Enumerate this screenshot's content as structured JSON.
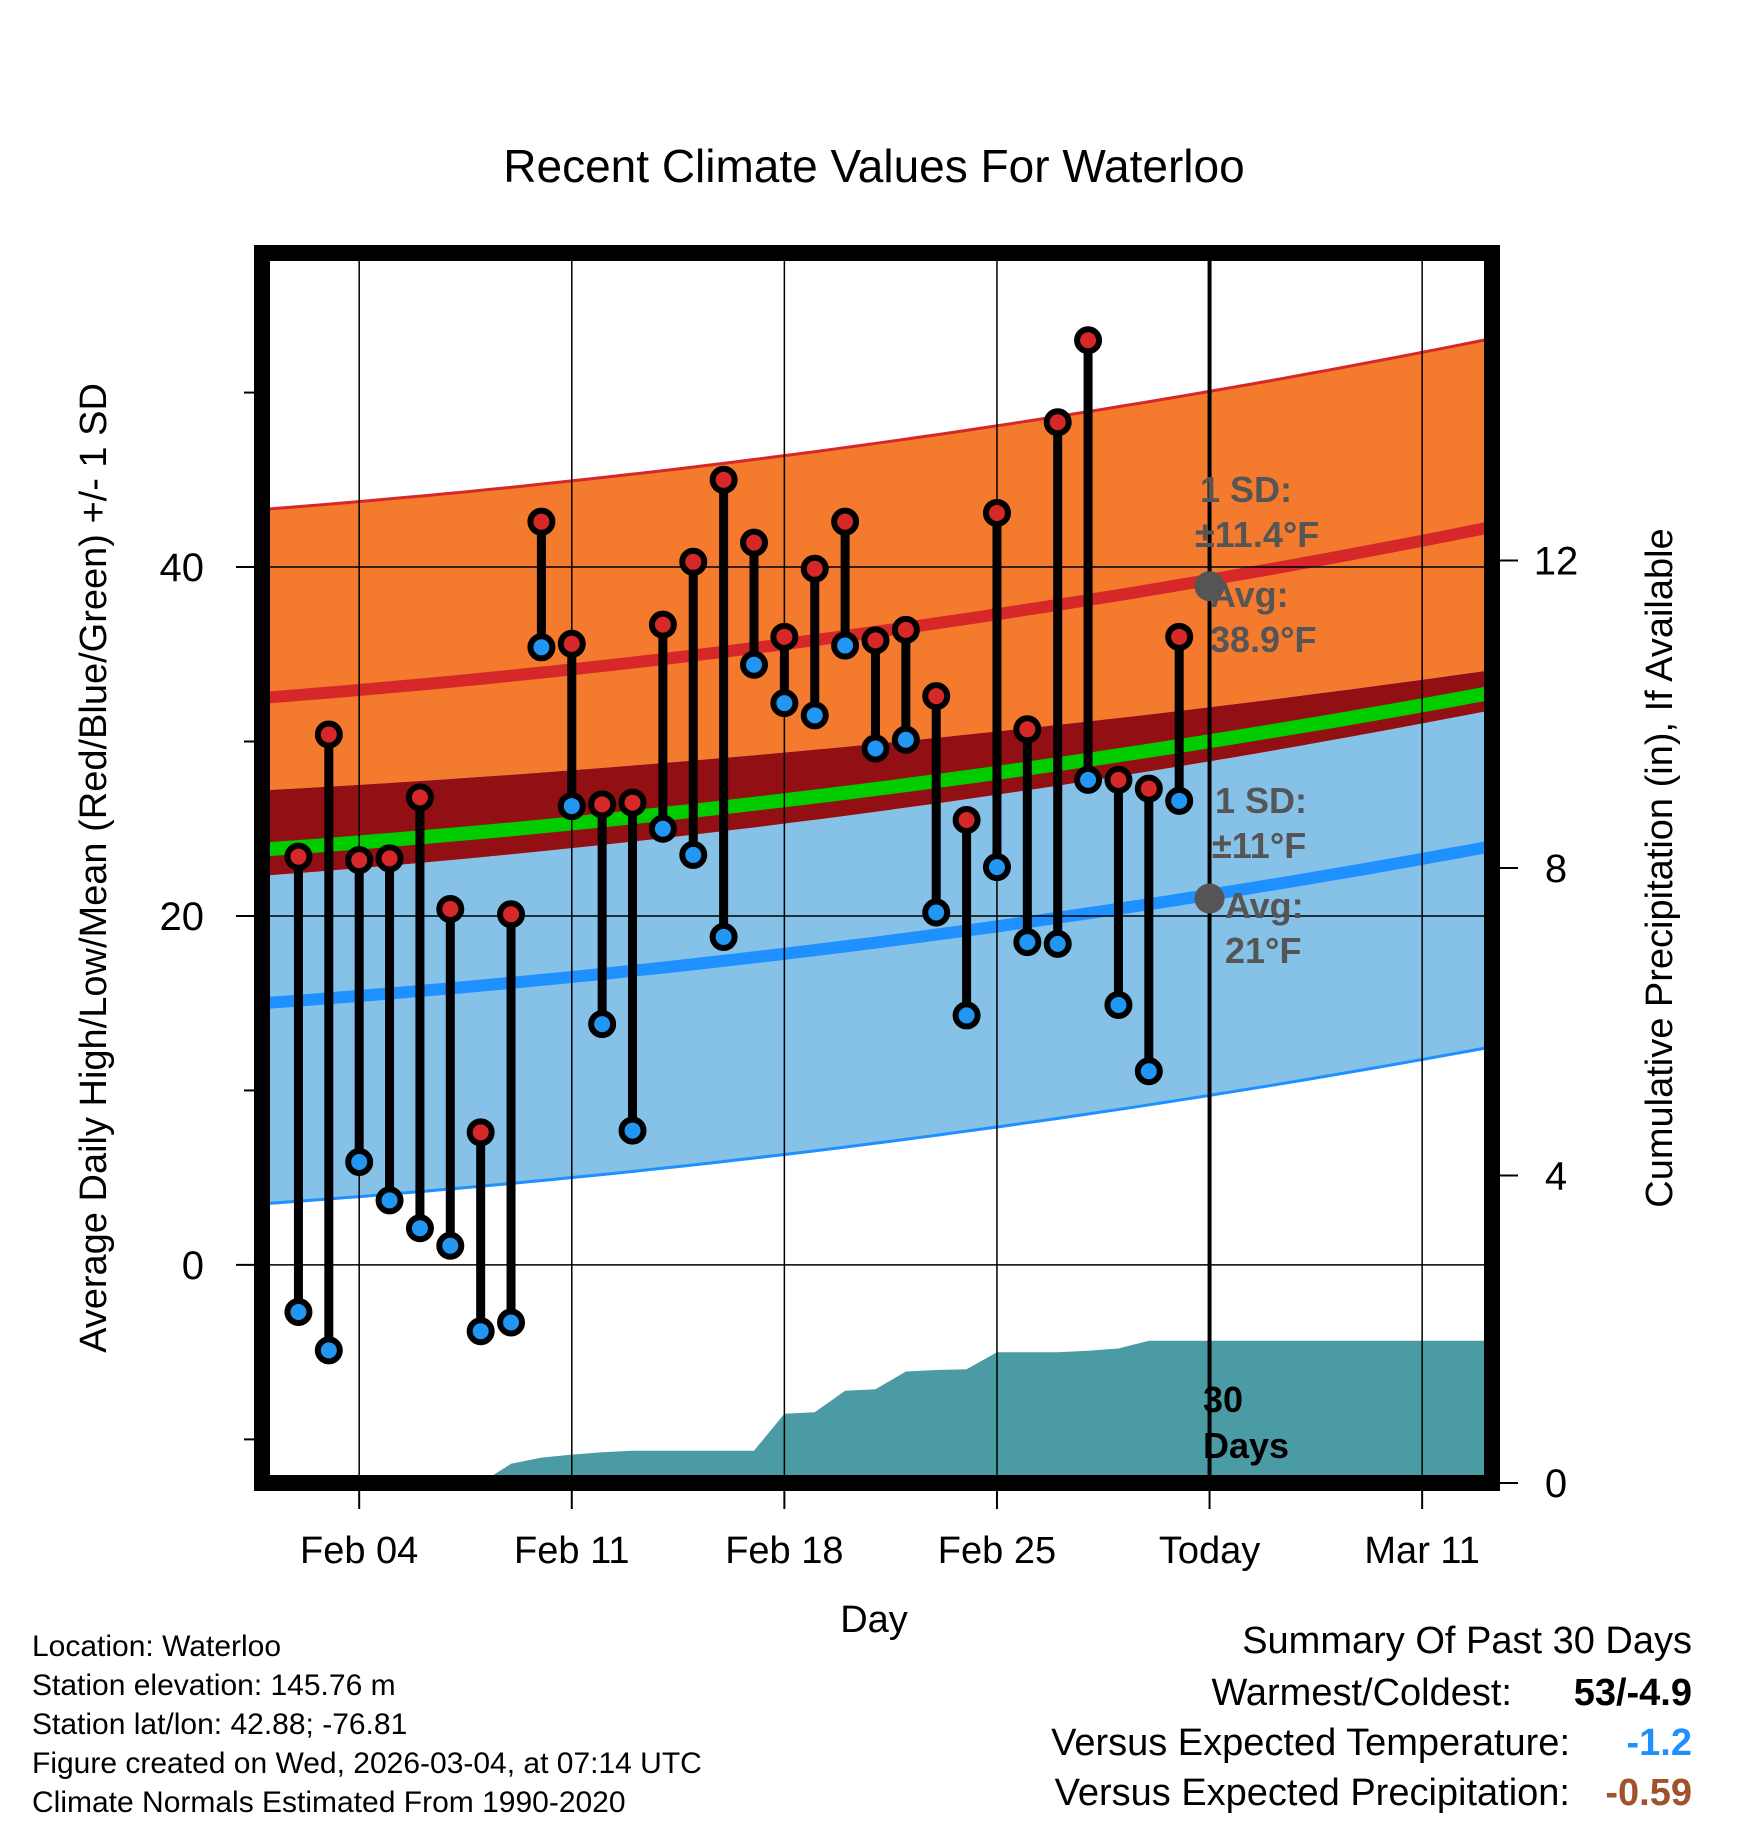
{
  "chart_data": {
    "type": "line",
    "title": "Recent Climate Values For Waterloo",
    "xlabel": "Day",
    "ylabel": "Average Daily High/Low/Mean (Red/Blue/Green) +/- 1 SD",
    "y2label": "Cumulative Precipitation (in), If Available",
    "x_tick_labels": [
      "Feb 04",
      "Feb 11",
      "Feb 18",
      "Feb 25",
      "Today",
      "Mar 11"
    ],
    "x_tick_days": [
      4,
      11,
      18,
      25,
      32,
      39
    ],
    "xlim": [
      0.8,
      41.3
    ],
    "ylim": [
      -12.5,
      58
    ],
    "y_ticks": [
      0,
      20,
      40
    ],
    "y_minor_ticks": [
      -10,
      10,
      30,
      50
    ],
    "y2lim": [
      0,
      16
    ],
    "y2_ticks": [
      0,
      4,
      8,
      12
    ],
    "today_day": 32,
    "normal_high": {
      "start": 32.5,
      "end": 42.3,
      "today": 38.9,
      "sd": 11.4
    },
    "normal_low": {
      "start": 15.0,
      "end": 24.0,
      "today": 21.0,
      "sd": 11.0
    },
    "normal_mean_band": {
      "low_start": 22.3,
      "low_end": 31.8,
      "high_start": 27.2,
      "high_end": 34.1
    },
    "normal_mean_line": {
      "start": 23.8,
      "end": 32.8
    },
    "daily_days": [
      2,
      3,
      4,
      5,
      6,
      7,
      8,
      9,
      10,
      11,
      12,
      13,
      14,
      15,
      16,
      17,
      18,
      19,
      20,
      21,
      22,
      23,
      24,
      25,
      26,
      27,
      28,
      29,
      30,
      31
    ],
    "daily_highs": [
      23.4,
      30.4,
      23.2,
      23.3,
      26.8,
      20.4,
      7.6,
      20.1,
      42.6,
      35.6,
      26.4,
      26.5,
      36.7,
      40.3,
      45.0,
      41.4,
      36.0,
      39.9,
      42.6,
      35.8,
      36.4,
      32.6,
      25.5,
      43.1,
      30.7,
      48.3,
      53.0,
      27.8,
      27.3,
      36.0
    ],
    "daily_lows": [
      -2.7,
      -4.9,
      5.9,
      3.7,
      2.1,
      1.1,
      -3.8,
      -3.3,
      35.4,
      26.3,
      13.8,
      7.7,
      25.0,
      23.5,
      18.8,
      34.4,
      32.2,
      31.5,
      35.5,
      29.6,
      30.1,
      20.2,
      14.3,
      22.8,
      18.5,
      18.4,
      27.8,
      14.9,
      11.1,
      26.6
    ],
    "precip_days": [
      8,
      9,
      10,
      11,
      12,
      13,
      14,
      15,
      16,
      17,
      18,
      19,
      20,
      21,
      22,
      23,
      24,
      25,
      26,
      27,
      28,
      29,
      30,
      31,
      41.3
    ],
    "precip_cum": [
      0,
      0.25,
      0.33,
      0.37,
      0.4,
      0.42,
      0.42,
      0.42,
      0.42,
      0.42,
      0.9,
      0.92,
      1.2,
      1.22,
      1.45,
      1.47,
      1.48,
      1.7,
      1.7,
      1.7,
      1.72,
      1.75,
      1.85,
      1.85,
      1.85
    ],
    "annotations": {
      "high_sd_label": "1 SD:",
      "high_sd_value": "±11.4°F",
      "high_avg_label": "Avg:",
      "high_avg_value": "38.9°F",
      "low_sd_label": "1 SD:",
      "low_sd_value": "±11°F",
      "low_avg_label": "Avg:",
      "low_avg_value": "21°F",
      "days_value": "30",
      "days_label": "Days"
    }
  },
  "colors": {
    "high_band": "#f47a2e",
    "mean_band": "#920f14",
    "mean_line": "#00cc00",
    "low_band": "#86c2e8",
    "high_line": "#d62828",
    "low_line": "#1e90ff",
    "precip": "#4a9ba3",
    "marker_high": "#d62828",
    "marker_low": "#2196f3",
    "annotation": "#555555",
    "temp_anomaly": "#1e90ff",
    "precip_anomaly": "#a0522d"
  },
  "footer": {
    "location": "Location: Waterloo",
    "elevation": "Station elevation: 145.76 m",
    "latlon": "Station lat/lon: 42.88; -76.81",
    "created": "Figure created on Wed, 2026-03-04, at 07:14 UTC",
    "normals": "Climate Normals Estimated From 1990-2020"
  },
  "summary": {
    "title": "Summary Of Past 30 Days",
    "warmest_label": "Warmest/Coldest:",
    "warmest_value": "53/-4.9",
    "temp_label": "Versus Expected Temperature:",
    "temp_value": "-1.2",
    "precip_label": "Versus Expected Precipitation:",
    "precip_value": "-0.59"
  }
}
